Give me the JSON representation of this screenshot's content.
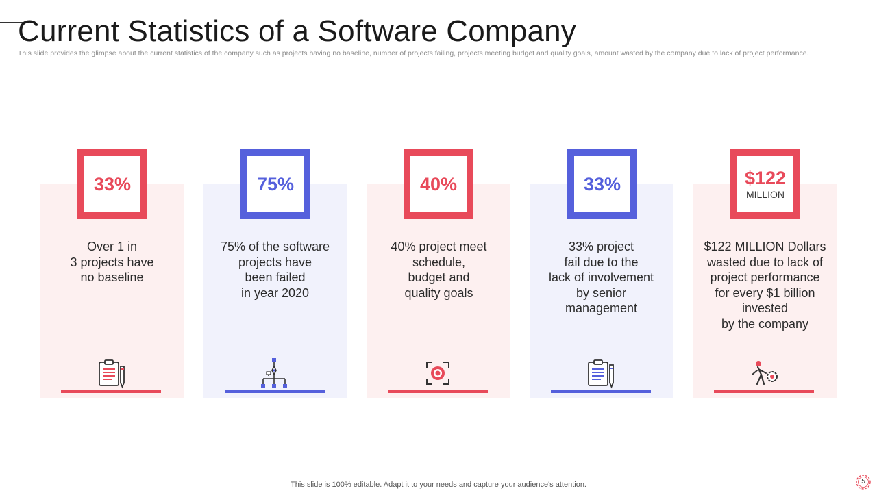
{
  "slide": {
    "title": "Current Statistics of a Software Company",
    "subtitle": "This slide provides the glimpse about the current statistics of the company such as projects having no baseline, number of projects failing, projects meeting budget and quality goals, amount wasted by the company due to lack of project performance.",
    "footer": "This slide is 100% editable. Adapt it to your needs and capture your audience's attention.",
    "page_number": "5"
  },
  "colors": {
    "red": "#e84a5a",
    "blue": "#5560dc",
    "red_tint": "#fdf0f0",
    "blue_tint": "#f1f2fc"
  },
  "cards": [
    {
      "value": "33%",
      "unit": "",
      "text": "Over 1 in\n3 projects have\nno baseline",
      "icon": "clipboard-pen-icon",
      "theme": "red"
    },
    {
      "value": "75%",
      "unit": "",
      "text": "75% of the software\nprojects have\nbeen failed\nin year 2020",
      "icon": "hierarchy-icon",
      "theme": "blue"
    },
    {
      "value": "40%",
      "unit": "",
      "text": "40% project meet\nschedule,\nbudget and\nquality goals",
      "icon": "target-focus-icon",
      "theme": "red"
    },
    {
      "value": "33%",
      "unit": "",
      "text": "33% project\nfail due to the\nlack of involvement\nby senior\nmanagement",
      "icon": "document-pen-icon",
      "theme": "blue"
    },
    {
      "value": "$122",
      "unit": "MILLION",
      "text": "$122 MILLION Dollars\nwasted due to lack of\nproject performance\nfor every $1 billion\ninvested\nby the company",
      "icon": "person-pushing-gear-icon",
      "theme": "red"
    }
  ]
}
